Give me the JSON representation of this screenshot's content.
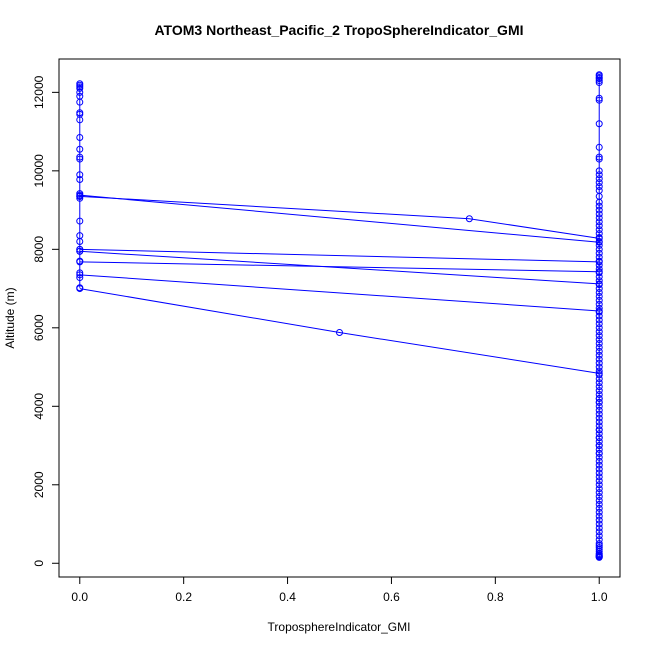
{
  "chart_data": {
    "type": "line",
    "title": "ATOM3 Northeast_Pacific_2 TropoSphereIndicator_GMI",
    "xlabel": "TroposphereIndicator_GMI",
    "ylabel": "Altitude (m)",
    "xlim": [
      -0.04,
      1.04
    ],
    "ylim": [
      -350,
      12850
    ],
    "xticks": [
      0.0,
      0.2,
      0.4,
      0.6,
      0.8,
      1.0
    ],
    "xtick_labels": [
      "0.0",
      "0.2",
      "0.4",
      "0.6",
      "0.8",
      "1.0"
    ],
    "yticks": [
      0,
      2000,
      4000,
      6000,
      8000,
      10000,
      12000
    ],
    "ytick_labels": [
      "0",
      "2000",
      "4000",
      "6000",
      "8000",
      "10000",
      "12000"
    ],
    "grid": false,
    "series_color": "#0000ff",
    "series": [
      {
        "x": [
          0,
          0,
          0,
          0,
          0,
          0,
          0,
          0,
          0,
          0,
          0,
          0,
          0,
          0,
          0,
          0,
          0,
          0,
          0,
          0,
          0,
          0,
          0,
          0,
          0,
          0,
          0,
          0
        ],
        "y": [
          12220,
          12180,
          12140,
          12100,
          12000,
          11900,
          11750,
          11480,
          11440,
          11300,
          10850,
          10550,
          10350,
          10300,
          9900,
          9780,
          9420,
          9350,
          9300,
          8720,
          8350,
          8200,
          8000,
          7950,
          7700,
          7400,
          7280,
          7020
        ]
      },
      {
        "x": [
          1,
          1,
          1,
          1,
          1,
          1,
          1,
          1,
          1,
          1,
          1,
          1,
          1,
          1,
          1,
          1,
          1,
          1,
          1,
          1,
          1,
          1,
          1,
          1,
          1,
          1,
          1,
          1,
          1,
          1,
          1,
          1,
          1,
          1,
          1,
          1,
          1,
          1,
          1,
          1,
          1,
          1,
          1,
          1,
          1,
          1,
          1,
          1,
          1,
          1,
          1,
          1,
          1,
          1,
          1,
          1,
          1,
          1,
          1,
          1,
          1,
          1,
          1,
          1,
          1,
          1,
          1,
          1,
          1,
          1,
          1,
          1,
          1,
          1,
          1,
          1,
          1,
          1,
          1,
          1,
          1,
          1,
          1,
          1,
          1,
          1,
          1,
          1,
          1,
          1,
          1,
          1,
          1,
          1,
          1,
          1,
          1,
          1,
          1,
          1,
          1,
          1,
          1,
          1,
          1,
          1,
          1,
          1,
          1,
          1,
          1,
          1,
          1,
          1,
          1,
          1,
          1,
          1,
          1,
          1,
          1,
          1,
          1,
          1
        ],
        "y": [
          12450,
          12420,
          12380,
          12350,
          12300,
          12250,
          11850,
          11800,
          11200,
          10600,
          10350,
          10300,
          10000,
          9900,
          9800,
          9700,
          9600,
          9500,
          9350,
          9200,
          9100,
          9000,
          8900,
          8800,
          8700,
          8600,
          8500,
          8400,
          8300,
          8200,
          8100,
          8000,
          7900,
          7800,
          7700,
          7600,
          7500,
          7400,
          7300,
          7200,
          7100,
          7000,
          6900,
          6800,
          6700,
          6600,
          6500,
          6400,
          6300,
          6200,
          6100,
          6000,
          5900,
          5800,
          5700,
          5600,
          5500,
          5400,
          5300,
          5200,
          5100,
          5000,
          4900,
          4800,
          4700,
          4600,
          4500,
          4400,
          4300,
          4200,
          4100,
          4000,
          3900,
          3800,
          3700,
          3600,
          3500,
          3400,
          3300,
          3200,
          3100,
          3000,
          2900,
          2800,
          2700,
          2600,
          2500,
          2400,
          2300,
          2200,
          2100,
          2000,
          1900,
          1800,
          1700,
          1600,
          1500,
          1400,
          1300,
          1200,
          1100,
          1000,
          900,
          800,
          700,
          600,
          500,
          450,
          400,
          350,
          300,
          250,
          220,
          200,
          180,
          170,
          160,
          150,
          2800,
          3000,
          3200,
          3400,
          4100,
          4200
        ]
      },
      {
        "x": [
          0,
          0.75,
          1
        ],
        "y": [
          9350,
          8780,
          8280
        ]
      },
      {
        "x": [
          0,
          1
        ],
        "y": [
          9380,
          8180
        ]
      },
      {
        "x": [
          0,
          1
        ],
        "y": [
          8000,
          7680
        ]
      },
      {
        "x": [
          0,
          1
        ],
        "y": [
          7950,
          7120
        ]
      },
      {
        "x": [
          0,
          1
        ],
        "y": [
          7680,
          7430
        ]
      },
      {
        "x": [
          0,
          1
        ],
        "y": [
          7350,
          6430
        ]
      },
      {
        "x": [
          0,
          0.5,
          1
        ],
        "y": [
          7000,
          5880,
          4840
        ]
      }
    ]
  }
}
